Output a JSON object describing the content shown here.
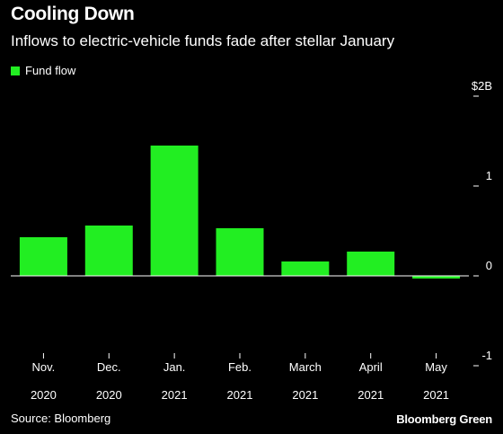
{
  "header": {
    "title": "Cooling Down",
    "subtitle": "Inflows to electric-vehicle funds fade after stellar January"
  },
  "legend": {
    "label": "Fund flow",
    "color": "#22ee22"
  },
  "footer": {
    "source": "Source: Bloomberg",
    "brand": "Bloomberg Green"
  },
  "chart_data": {
    "type": "bar",
    "categories": [
      [
        "Nov.",
        "2020"
      ],
      [
        "Dec.",
        "2020"
      ],
      [
        "Jan.",
        "2021"
      ],
      [
        "Feb.",
        "2021"
      ],
      [
        "March",
        "2021"
      ],
      [
        "April",
        "2021"
      ],
      [
        "May",
        "2021"
      ]
    ],
    "series": [
      {
        "name": "Fund flow",
        "values": [
          0.43,
          0.56,
          1.45,
          0.53,
          0.16,
          0.27,
          -0.03
        ]
      }
    ],
    "ylim": [
      -1,
      2
    ],
    "yticks": [
      {
        "value": 2,
        "label": "$2B"
      },
      {
        "value": 1,
        "label": "1"
      },
      {
        "value": 0,
        "label": "0"
      },
      {
        "value": -1,
        "label": "-1"
      }
    ],
    "grid": false,
    "legend_position": "top-left",
    "bar_color": "#22ee22",
    "axis_color": "#ffffff"
  }
}
